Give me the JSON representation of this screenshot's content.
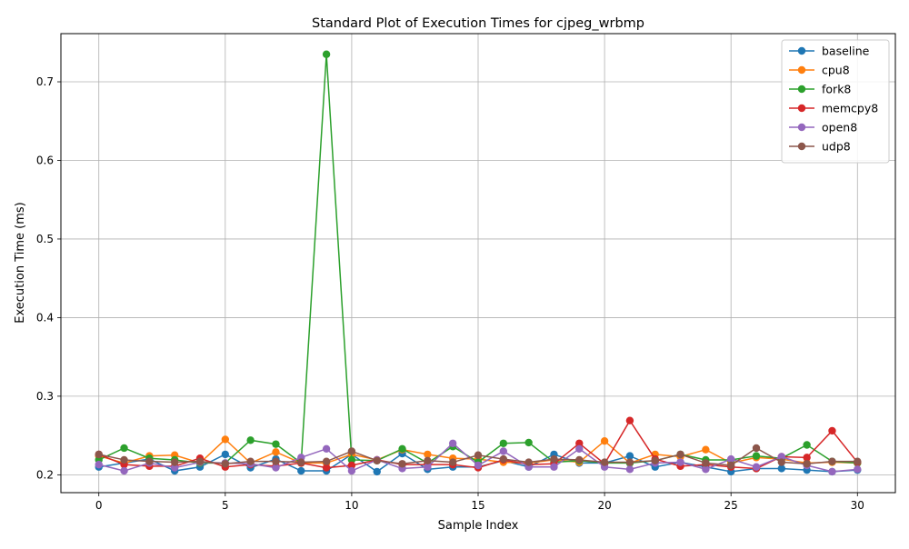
{
  "chart_data": {
    "type": "line",
    "title": "Standard Plot of Execution Times for cjpeg_wrbmp",
    "xlabel": "Sample Index",
    "ylabel": "Execution Time (ms)",
    "xlim": [
      -1.5,
      31.5
    ],
    "ylim": [
      0.1773,
      0.7613
    ],
    "xticks": [
      0,
      5,
      10,
      15,
      20,
      25,
      30
    ],
    "xtick_labels": [
      "0",
      "5",
      "10",
      "15",
      "20",
      "25",
      "30"
    ],
    "yticks": [
      0.2,
      0.3,
      0.4,
      0.5,
      0.6,
      0.7
    ],
    "ytick_labels": [
      "0.2",
      "0.3",
      "0.4",
      "0.5",
      "0.6",
      "0.7"
    ],
    "grid": true,
    "legend_position": "top-right",
    "x": [
      0,
      1,
      2,
      3,
      4,
      5,
      6,
      7,
      8,
      9,
      10,
      11,
      12,
      13,
      14,
      15,
      16,
      17,
      18,
      19,
      20,
      21,
      22,
      23,
      24,
      25,
      26,
      27,
      28,
      29,
      30
    ],
    "series": [
      {
        "name": "baseline",
        "color": "#1f77b4",
        "values": [
          0.21,
          0.215,
          0.22,
          0.205,
          0.21,
          0.226,
          0.209,
          0.22,
          0.205,
          0.205,
          0.226,
          0.204,
          0.227,
          0.207,
          0.21,
          0.21,
          0.218,
          0.21,
          0.226,
          0.215,
          0.215,
          0.224,
          0.21,
          0.216,
          0.21,
          0.204,
          0.208,
          0.208,
          0.206,
          0.204,
          0.206
        ]
      },
      {
        "name": "cpu8",
        "color": "#ff7f0e",
        "values": [
          0.224,
          0.215,
          0.224,
          0.225,
          0.215,
          0.245,
          0.215,
          0.229,
          0.215,
          0.215,
          0.226,
          0.219,
          0.232,
          0.226,
          0.221,
          0.22,
          0.216,
          0.215,
          0.219,
          0.216,
          0.243,
          0.215,
          0.226,
          0.223,
          0.232,
          0.215,
          0.222,
          0.22,
          0.215,
          0.216,
          0.215
        ]
      },
      {
        "name": "fork8",
        "color": "#2ca02c",
        "values": [
          0.219,
          0.234,
          0.221,
          0.219,
          0.215,
          0.215,
          0.244,
          0.239,
          0.215,
          0.735,
          0.219,
          0.218,
          0.233,
          0.215,
          0.236,
          0.216,
          0.24,
          0.241,
          0.216,
          0.218,
          0.215,
          0.215,
          0.218,
          0.226,
          0.219,
          0.219,
          0.224,
          0.221,
          0.238,
          0.217,
          0.215
        ]
      },
      {
        "name": "memcpy8",
        "color": "#d62728",
        "values": [
          0.226,
          0.213,
          0.211,
          0.211,
          0.221,
          0.21,
          0.213,
          0.211,
          0.215,
          0.209,
          0.212,
          0.219,
          0.213,
          0.213,
          0.213,
          0.209,
          0.219,
          0.213,
          0.214,
          0.24,
          0.214,
          0.269,
          0.22,
          0.211,
          0.213,
          0.21,
          0.208,
          0.223,
          0.222,
          0.256,
          0.216
        ]
      },
      {
        "name": "open8",
        "color": "#9467bd",
        "values": [
          0.213,
          0.205,
          0.215,
          0.209,
          0.216,
          0.215,
          0.214,
          0.209,
          0.222,
          0.233,
          0.205,
          0.219,
          0.208,
          0.21,
          0.24,
          0.212,
          0.23,
          0.21,
          0.21,
          0.233,
          0.21,
          0.207,
          0.215,
          0.216,
          0.207,
          0.22,
          0.21,
          0.223,
          0.212,
          0.204,
          0.207
        ]
      },
      {
        "name": "udp8",
        "color": "#8c564b",
        "values": [
          0.226,
          0.219,
          0.217,
          0.216,
          0.217,
          0.214,
          0.217,
          0.217,
          0.216,
          0.217,
          0.23,
          0.218,
          0.214,
          0.218,
          0.216,
          0.225,
          0.22,
          0.216,
          0.22,
          0.219,
          0.216,
          0.216,
          0.218,
          0.226,
          0.215,
          0.212,
          0.234,
          0.216,
          0.214,
          0.217,
          0.217
        ]
      }
    ]
  }
}
